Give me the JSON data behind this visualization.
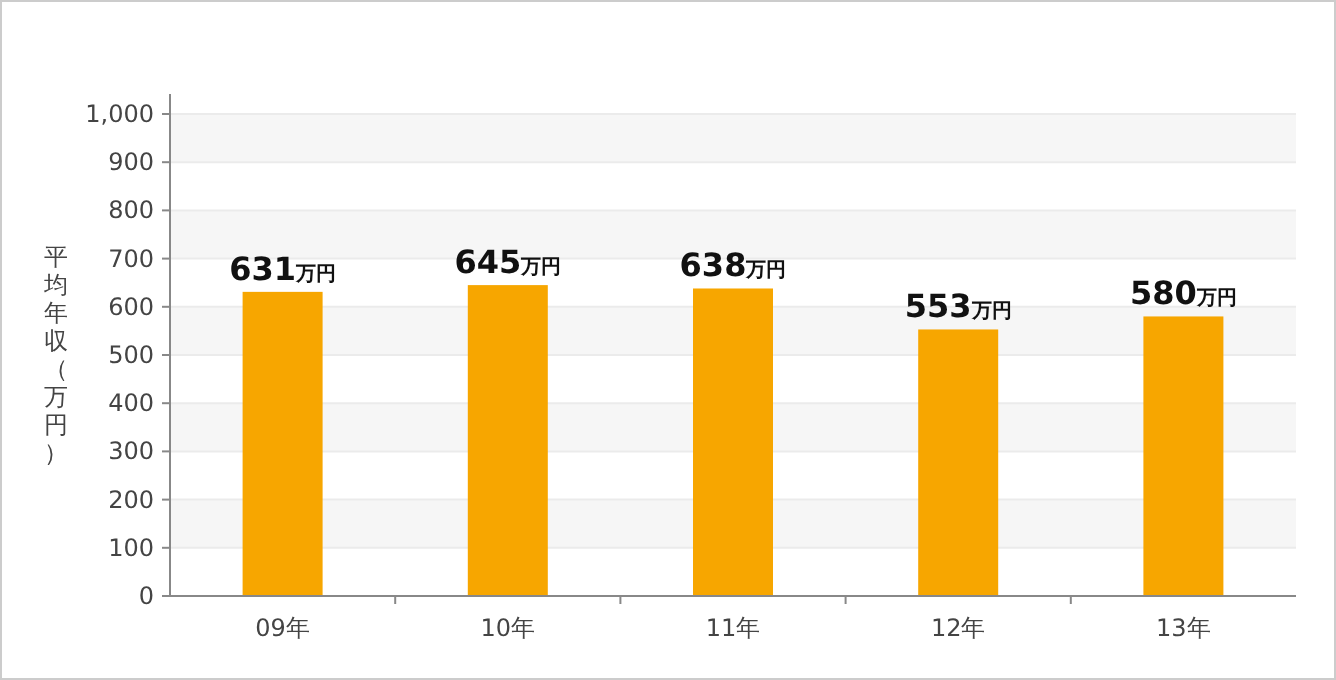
{
  "chart_data": {
    "type": "bar",
    "ylabel": "平均年収（万円）",
    "categories": [
      "09年",
      "10年",
      "11年",
      "12年",
      "13年"
    ],
    "values": [
      631,
      645,
      638,
      553,
      580
    ],
    "value_labels": [
      "631万円",
      "645万円",
      "638万円",
      "553万円",
      "580万円"
    ],
    "color": "#f7a600",
    "ylim": [
      0,
      1000
    ],
    "yticks": [
      0,
      100,
      200,
      300,
      400,
      500,
      600,
      700,
      800,
      900,
      {
        "value": 1000,
        "label": "1,000"
      }
    ],
    "grid": "y"
  }
}
